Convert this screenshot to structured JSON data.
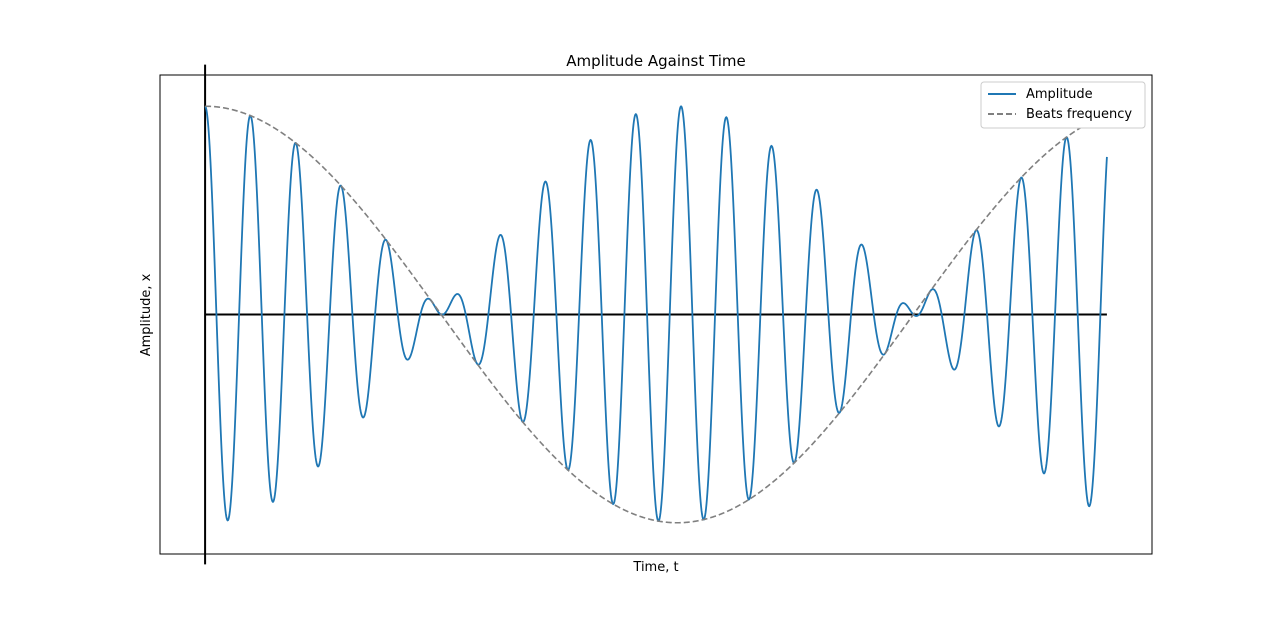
{
  "chart_data": {
    "type": "line",
    "title": "Amplitude Against Time",
    "xlabel": "Time, t",
    "ylabel": "Amplitude, x",
    "xlim": [
      -0.5,
      10.5
    ],
    "ylim": [
      -2.3,
      2.3
    ],
    "x_range": [
      0,
      10
    ],
    "ticks_shown": false,
    "grid": false,
    "legend_position": "top-right",
    "reference_axes": {
      "horizontal_y": 0,
      "vertical_x": 0,
      "vertical_span": [
        -2.4,
        2.4
      ]
    },
    "series": [
      {
        "name": "Amplitude",
        "style": "solid",
        "color": "#1f77b4",
        "function": "cos(w1*t) + cos(w2*t)",
        "w1": 13.1,
        "w2": 11.9
      },
      {
        "name": "Beats frequency",
        "style": "dashed",
        "color": "#808080",
        "function": "2*cos(wb*t)",
        "wb": 0.6
      }
    ],
    "reference_line_color": "#000000"
  }
}
